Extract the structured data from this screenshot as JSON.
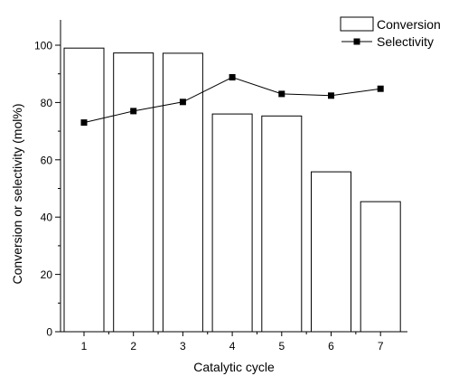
{
  "chart_data": {
    "type": "bar",
    "title": "",
    "xlabel": "Catalytic cycle",
    "ylabel": "Conversion or selectivity (mol%)",
    "categories": [
      "1",
      "2",
      "3",
      "4",
      "5",
      "6",
      "7"
    ],
    "ylim": [
      0,
      100
    ],
    "yticks": [
      "0",
      "20",
      "40",
      "60",
      "80",
      "100"
    ],
    "series": [
      {
        "name": "Conversion",
        "type": "bar",
        "values": [
          99,
          97.3,
          97.2,
          76,
          75.3,
          55.8,
          45.4
        ]
      },
      {
        "name": "Selectivity",
        "type": "line",
        "marker": "square",
        "values": [
          73,
          77,
          80.2,
          88.8,
          83,
          82.4,
          84.8
        ]
      }
    ],
    "grid": false,
    "legend_position": "top-right",
    "colors": {
      "bar_fill": "#ffffff",
      "bar_stroke": "#000000",
      "line": "#000000"
    }
  }
}
